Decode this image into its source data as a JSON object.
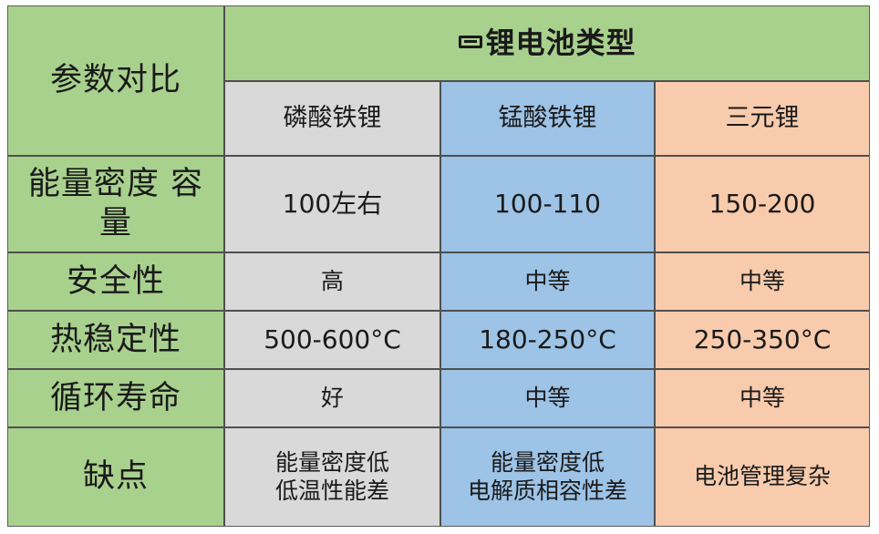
{
  "table": {
    "param_header": "参数对比",
    "group_title": "锂电池类型",
    "types": [
      "磷酸铁锂",
      "锰酸铁锂",
      "三元锂"
    ],
    "rows": [
      {
        "label": "能量密度 容\n量",
        "values": [
          "100左右",
          "100-110",
          "150-200"
        ]
      },
      {
        "label": "安全性",
        "values": [
          "高",
          "中等",
          "中等"
        ]
      },
      {
        "label": "热稳定性",
        "values": [
          "500-600°C",
          "180-250°C",
          "250-350°C"
        ]
      },
      {
        "label": "循环寿命",
        "values": [
          "好",
          "中等",
          "中等"
        ]
      },
      {
        "label": "缺点",
        "values": [
          "能量密度低\n低温性能差",
          "能量密度低\n电解质相容性差",
          "电池管理复杂"
        ]
      }
    ]
  },
  "colors": {
    "header_green": "#a9d18e",
    "col_grey": "#d9d9d9",
    "col_blue": "#9dc3e6",
    "col_peach": "#f8cbad",
    "border": "#4f4f4f"
  },
  "icons": {
    "title_icon": "battery-icon"
  }
}
